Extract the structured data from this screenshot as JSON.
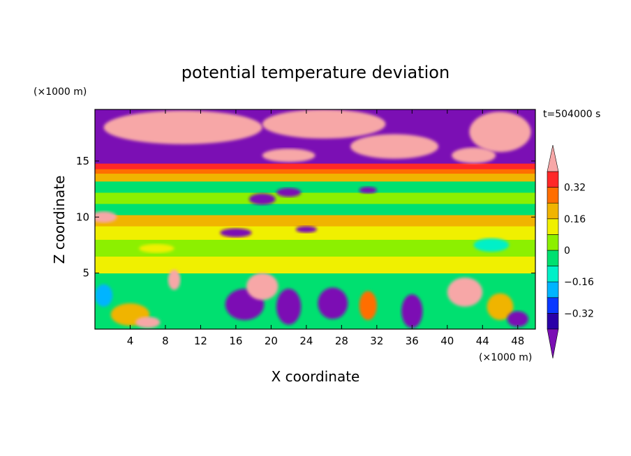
{
  "chart_data": {
    "type": "heatmap",
    "title": "potential temperature deviation",
    "xlabel": "X coordinate",
    "ylabel": "Z coordinate",
    "x_unit": "(×1000 m)",
    "y_unit": "(×1000 m)",
    "time_label": "t=504000 s",
    "xlim": [
      0,
      50
    ],
    "ylim": [
      0,
      19.6
    ],
    "x_ticks": [
      4,
      8,
      12,
      16,
      20,
      24,
      28,
      32,
      36,
      40,
      44,
      48
    ],
    "y_ticks": [
      5,
      10,
      15
    ],
    "colorbar": {
      "levels": [
        -0.4,
        -0.32,
        -0.24,
        -0.16,
        -0.08,
        0,
        0.08,
        0.16,
        0.24,
        0.32,
        0.4
      ],
      "tick_values": [
        -0.32,
        -0.16,
        0,
        0.16,
        0.32
      ],
      "tick_labels": [
        "−0.32",
        "−0.16",
        "0",
        "0.16",
        "0.32"
      ],
      "colors": [
        "#7b0fb4",
        "#2a00a8",
        "#0a38ff",
        "#00b4ff",
        "#00f0c8",
        "#00e070",
        "#8cf000",
        "#f0f000",
        "#f0b400",
        "#ff6e00",
        "#ff2828",
        "#f7a7a7"
      ]
    },
    "bands": [
      {
        "z0": 0.0,
        "z1": 5.0,
        "level": -0.05
      },
      {
        "z0": 5.0,
        "z1": 6.5,
        "level": 0.12
      },
      {
        "z0": 6.5,
        "z1": 8.0,
        "level": 0.02
      },
      {
        "z0": 8.0,
        "z1": 9.2,
        "level": 0.09
      },
      {
        "z0": 9.2,
        "z1": 10.2,
        "level": 0.19
      },
      {
        "z0": 10.2,
        "z1": 11.2,
        "level": -0.03
      },
      {
        "z0": 11.2,
        "z1": 12.2,
        "level": 0.06
      },
      {
        "z0": 12.2,
        "z1": 13.2,
        "level": -0.01
      },
      {
        "z0": 13.2,
        "z1": 13.9,
        "level": 0.18
      },
      {
        "z0": 13.9,
        "z1": 14.3,
        "level": 0.27
      },
      {
        "z0": 14.3,
        "z1": 14.8,
        "level": 0.36
      },
      {
        "z0": 14.8,
        "z1": 19.6,
        "level": -0.45
      }
    ],
    "blobs": [
      {
        "cx": 10,
        "cy": 18.0,
        "rx": 9,
        "ry": 1.5,
        "level": 0.45
      },
      {
        "cx": 26,
        "cy": 18.3,
        "rx": 7,
        "ry": 1.3,
        "level": 0.45
      },
      {
        "cx": 34,
        "cy": 16.3,
        "rx": 5,
        "ry": 1.1,
        "level": 0.45
      },
      {
        "cx": 46,
        "cy": 17.6,
        "rx": 3.5,
        "ry": 1.8,
        "level": 0.45
      },
      {
        "cx": 22,
        "cy": 15.5,
        "rx": 3,
        "ry": 0.6,
        "level": 0.45
      },
      {
        "cx": 43,
        "cy": 15.5,
        "rx": 2.5,
        "ry": 0.7,
        "level": 0.45
      },
      {
        "cx": 19,
        "cy": 11.6,
        "rx": 1.5,
        "ry": 0.5,
        "level": -0.45
      },
      {
        "cx": 22,
        "cy": 12.2,
        "rx": 1.4,
        "ry": 0.4,
        "level": -0.45
      },
      {
        "cx": 31,
        "cy": 12.4,
        "rx": 1.0,
        "ry": 0.3,
        "level": -0.45
      },
      {
        "cx": 16,
        "cy": 8.6,
        "rx": 1.8,
        "ry": 0.4,
        "level": -0.45
      },
      {
        "cx": 24,
        "cy": 8.9,
        "rx": 1.2,
        "ry": 0.3,
        "level": -0.45
      },
      {
        "cx": 9,
        "cy": 4.4,
        "rx": 0.7,
        "ry": 0.9,
        "level": 0.45
      },
      {
        "cx": 17,
        "cy": 2.2,
        "rx": 2.2,
        "ry": 1.4,
        "level": -0.45
      },
      {
        "cx": 19,
        "cy": 3.8,
        "rx": 1.8,
        "ry": 1.2,
        "level": 0.45
      },
      {
        "cx": 22,
        "cy": 2.0,
        "rx": 1.4,
        "ry": 1.6,
        "level": -0.45
      },
      {
        "cx": 27,
        "cy": 2.3,
        "rx": 1.7,
        "ry": 1.4,
        "level": -0.45
      },
      {
        "cx": 31,
        "cy": 2.1,
        "rx": 1.0,
        "ry": 1.3,
        "level": 0.3
      },
      {
        "cx": 36,
        "cy": 1.6,
        "rx": 1.2,
        "ry": 1.5,
        "level": -0.45
      },
      {
        "cx": 42,
        "cy": 3.3,
        "rx": 2.0,
        "ry": 1.3,
        "level": 0.45
      },
      {
        "cx": 46,
        "cy": 2.0,
        "rx": 1.5,
        "ry": 1.2,
        "level": 0.2
      },
      {
        "cx": 48,
        "cy": 0.9,
        "rx": 1.2,
        "ry": 0.7,
        "level": -0.45
      },
      {
        "cx": 4,
        "cy": 1.3,
        "rx": 2.2,
        "ry": 1.0,
        "level": 0.2
      },
      {
        "cx": 6,
        "cy": 0.6,
        "rx": 1.4,
        "ry": 0.5,
        "level": 0.45
      },
      {
        "cx": 1,
        "cy": 3.0,
        "rx": 1.0,
        "ry": 1.0,
        "level": -0.22
      },
      {
        "cx": 1,
        "cy": 10.0,
        "rx": 1.5,
        "ry": 0.5,
        "level": 0.45
      },
      {
        "cx": 7,
        "cy": 7.2,
        "rx": 2.0,
        "ry": 0.4,
        "level": 0.12
      },
      {
        "cx": 45,
        "cy": 7.5,
        "rx": 2.0,
        "ry": 0.6,
        "level": -0.12
      }
    ]
  }
}
